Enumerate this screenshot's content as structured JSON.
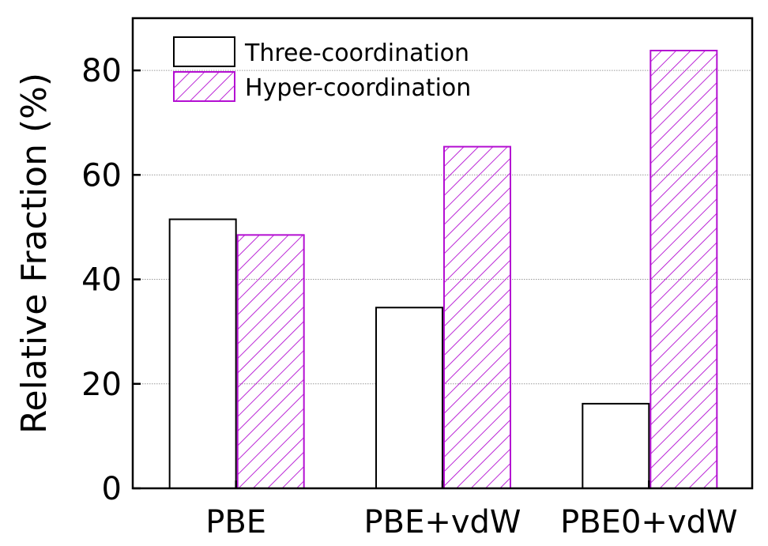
{
  "chart_data": {
    "type": "bar",
    "title": "",
    "xlabel": "",
    "ylabel": "Relative Fraction (%)",
    "ylim": [
      0,
      90
    ],
    "yticks": [
      0,
      20,
      40,
      60,
      80
    ],
    "grid": true,
    "legend_position": "top-left",
    "categories": [
      "PBE",
      "PBE+vdW",
      "PBE0+vdW"
    ],
    "series": [
      {
        "name": "Three-coordination",
        "values": [
          51.5,
          34.6,
          16.2
        ],
        "color": "#000000",
        "fill": "none"
      },
      {
        "name": "Hyper-coordination",
        "values": [
          48.5,
          65.4,
          83.8
        ],
        "color": "#b40fd2",
        "fill": "hatched"
      }
    ]
  }
}
